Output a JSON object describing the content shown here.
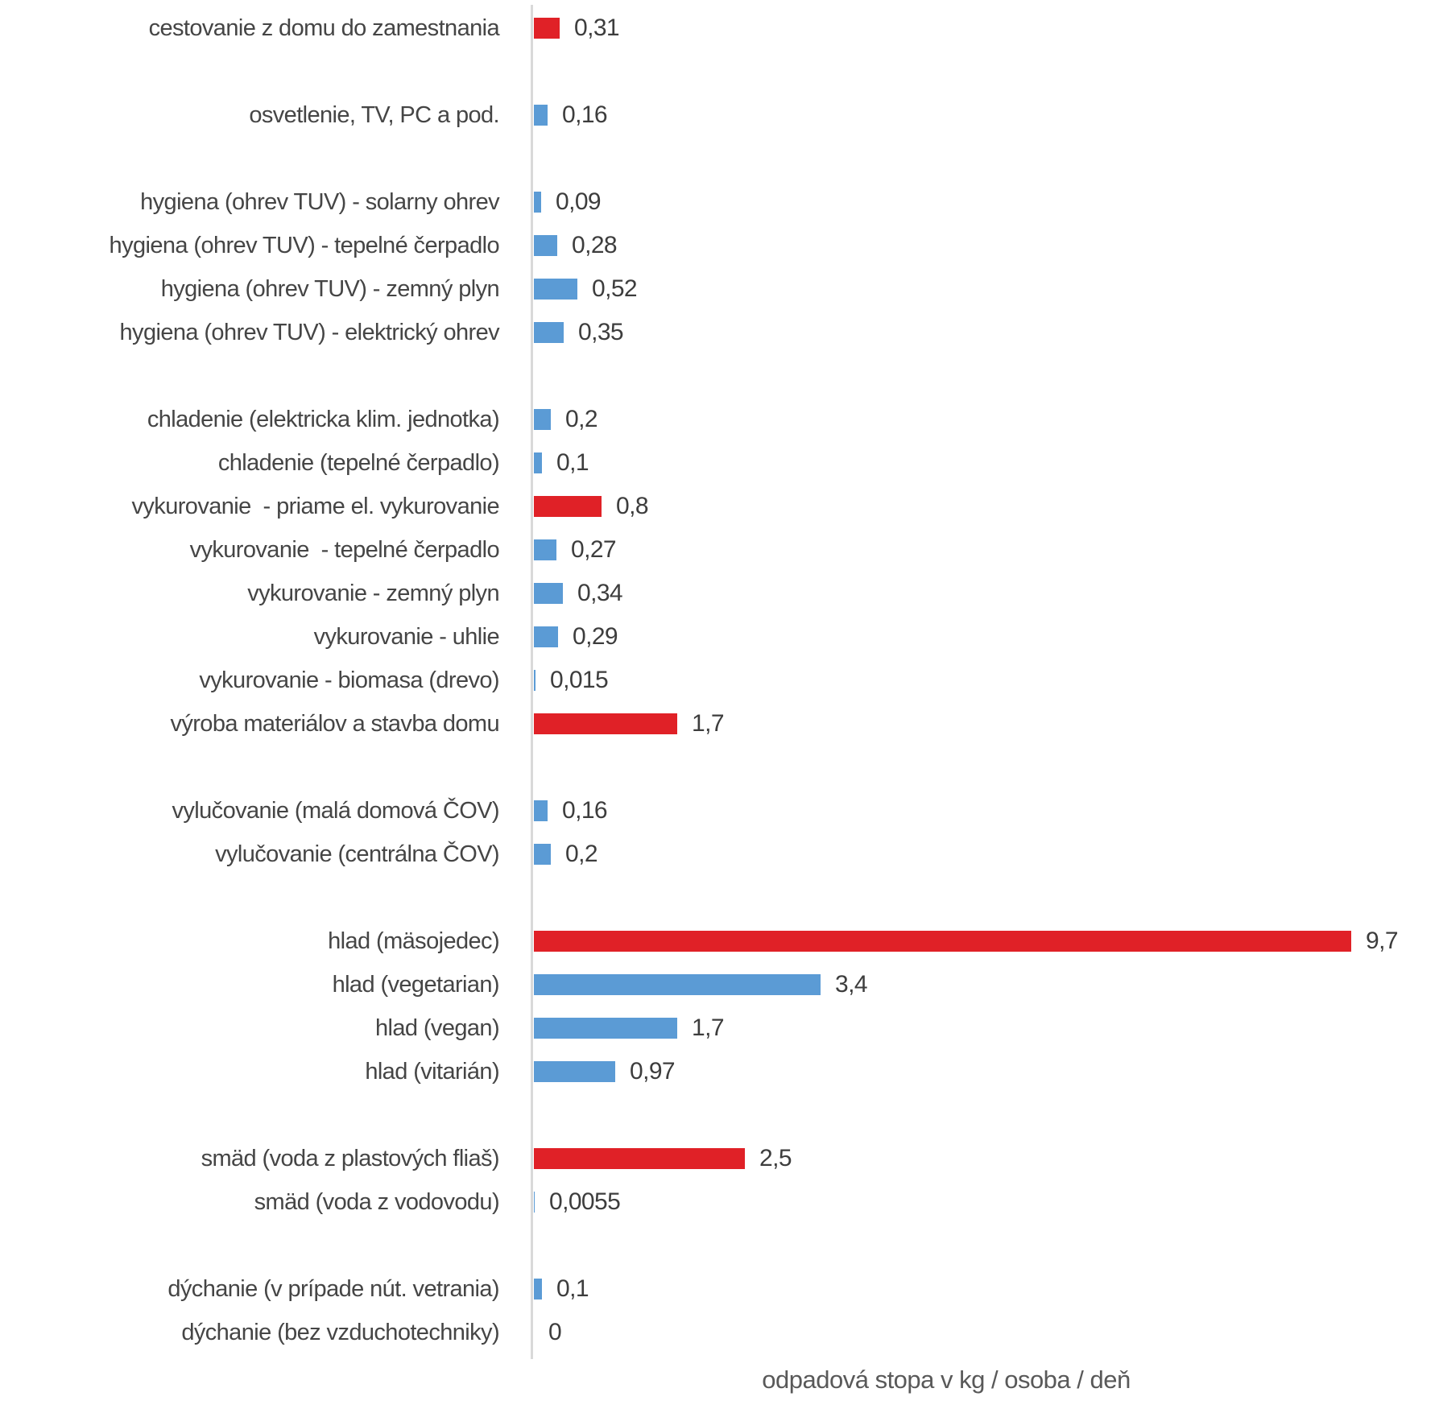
{
  "chart_data": {
    "type": "bar",
    "orientation": "horizontal",
    "title": "",
    "xlabel": "odpadová stopa v kg / osoba / deň",
    "x_range": [
      0,
      10
    ],
    "grid": false,
    "legend": false,
    "value_label_style": "outside-end, decimal comma",
    "colors": {
      "blue": "#5B9BD5",
      "red": "#E02127",
      "axis_line": "#D9D9D9",
      "category_text": "#454545",
      "value_text": "#3D3D3D",
      "axis_title_text": "#595959"
    },
    "groups": [
      {
        "rows": [
          {
            "label": "cestovanie z domu do zamestnania",
            "value": 0.31,
            "value_label": "0,31",
            "color": "red"
          }
        ]
      },
      {
        "rows": [
          {
            "label": "osvetlenie, TV, PC a pod.",
            "value": 0.16,
            "value_label": "0,16",
            "color": "blue"
          }
        ]
      },
      {
        "rows": [
          {
            "label": "hygiena (ohrev TUV) - solarny ohrev",
            "value": 0.09,
            "value_label": "0,09",
            "color": "blue"
          },
          {
            "label": "hygiena (ohrev TUV) - tepelné čerpadlo",
            "value": 0.28,
            "value_label": "0,28",
            "color": "blue"
          },
          {
            "label": "hygiena (ohrev TUV) - zemný plyn",
            "value": 0.52,
            "value_label": "0,52",
            "color": "blue"
          },
          {
            "label": "hygiena (ohrev TUV) - elektrický ohrev",
            "value": 0.35,
            "value_label": "0,35",
            "color": "blue"
          }
        ]
      },
      {
        "rows": [
          {
            "label": "chladenie (elektricka klim. jednotka)",
            "value": 0.2,
            "value_label": "0,2",
            "color": "blue"
          },
          {
            "label": "chladenie (tepelné čerpadlo)",
            "value": 0.1,
            "value_label": "0,1",
            "color": "blue"
          },
          {
            "label": "vykurovanie  - priame el. vykurovanie",
            "value": 0.8,
            "value_label": "0,8",
            "color": "red"
          },
          {
            "label": "vykurovanie  - tepelné čerpadlo",
            "value": 0.27,
            "value_label": "0,27",
            "color": "blue"
          },
          {
            "label": "vykurovanie - zemný plyn",
            "value": 0.34,
            "value_label": "0,34",
            "color": "blue"
          },
          {
            "label": "vykurovanie - uhlie",
            "value": 0.29,
            "value_label": "0,29",
            "color": "blue"
          },
          {
            "label": "vykurovanie - biomasa (drevo)",
            "value": 0.015,
            "value_label": "0,015",
            "color": "blue"
          },
          {
            "label": "výroba materiálov a stavba domu",
            "value": 1.7,
            "value_label": "1,7",
            "color": "red"
          }
        ]
      },
      {
        "rows": [
          {
            "label": "vylučovanie (malá domová ČOV)",
            "value": 0.16,
            "value_label": "0,16",
            "color": "blue"
          },
          {
            "label": "vylučovanie (centrálna ČOV)",
            "value": 0.2,
            "value_label": "0,2",
            "color": "blue"
          }
        ]
      },
      {
        "rows": [
          {
            "label": "hlad (mäsojedec)",
            "value": 9.7,
            "value_label": "9,7",
            "color": "red"
          },
          {
            "label": "hlad (vegetarian)",
            "value": 3.4,
            "value_label": "3,4",
            "color": "blue"
          },
          {
            "label": "hlad (vegan)",
            "value": 1.7,
            "value_label": "1,7",
            "color": "blue"
          },
          {
            "label": "hlad (vitarián)",
            "value": 0.97,
            "value_label": "0,97",
            "color": "blue"
          }
        ]
      },
      {
        "rows": [
          {
            "label": "smäd (voda z plastových fliaš)",
            "value": 2.5,
            "value_label": "2,5",
            "color": "red"
          },
          {
            "label": "smäd (voda z vodovodu)",
            "value": 0.0055,
            "value_label": "0,0055",
            "color": "blue"
          }
        ]
      },
      {
        "rows": [
          {
            "label": "dýchanie (v prípade nút. vetrania)",
            "value": 0.1,
            "value_label": "0,1",
            "color": "blue"
          },
          {
            "label": "dýchanie (bez vzduchotechniky)",
            "value": 0,
            "value_label": "0",
            "color": "blue"
          }
        ]
      }
    ]
  }
}
